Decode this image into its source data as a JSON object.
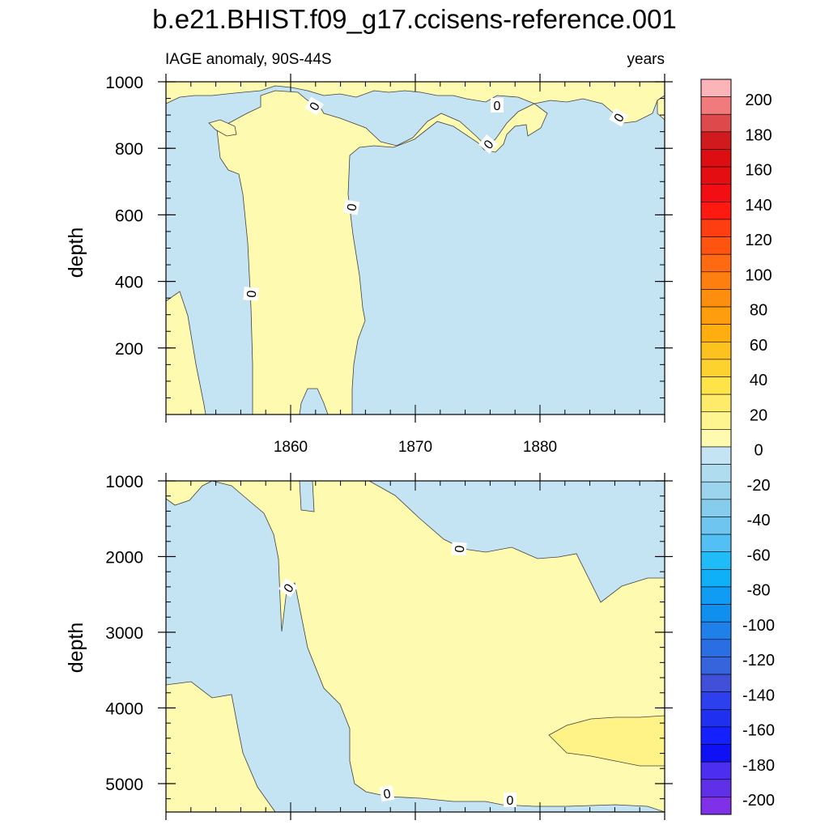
{
  "title": "b.e21.BHIST.f09_g17.ccisens-reference.001",
  "subtitle_left": "IAGE anomaly, 90S-44S",
  "subtitle_right": "years",
  "colors": {
    "neg_0_20": "#c4e4f4",
    "pos_0_20": "#fefbb0",
    "pos_20_40": "#fff387",
    "contour_line": "#404040"
  },
  "chart_data": [
    {
      "type": "heatmap",
      "panel": "upper",
      "ylabel": "depth",
      "ytick_labels": [
        "200",
        "400",
        "600",
        "800",
        "1000"
      ],
      "yticks": [
        200,
        400,
        600,
        800,
        1000
      ],
      "ylim": [
        1000,
        0
      ],
      "xlim": [
        1850,
        1890
      ],
      "xtick_labels": [
        "1860",
        "1870",
        "1880"
      ],
      "xticks": [
        1860,
        1870,
        1880
      ],
      "contour_labels": [
        "0",
        "0",
        "0",
        "0",
        "0",
        "0",
        "0"
      ]
    },
    {
      "type": "heatmap",
      "panel": "lower",
      "ylabel": "depth",
      "ytick_labels": [
        "1000",
        "2000",
        "3000",
        "4000",
        "5000"
      ],
      "yticks": [
        1000,
        2000,
        3000,
        4000,
        5000
      ],
      "ylim": [
        1000,
        5375
      ],
      "xlim": [
        1850,
        1890
      ],
      "contour_labels": [
        "0",
        "0",
        "0",
        "0"
      ]
    }
  ],
  "colorbar": {
    "labels": [
      "200",
      "180",
      "160",
      "140",
      "120",
      "100",
      "80",
      "60",
      "40",
      "20",
      "0",
      "-20",
      "-40",
      "-60",
      "-80",
      "-100",
      "-120",
      "-140",
      "-160",
      "-180",
      "-200"
    ],
    "colors": [
      "#fbb5b9",
      "#f07a7c",
      "#de4a4c",
      "#d01a1d",
      "#dc0e12",
      "#e40e12",
      "#f20e12",
      "#fe1a10",
      "#fe3e10",
      "#fe5410",
      "#fe6a10",
      "#fe7e10",
      "#fe8e0e",
      "#fe9e0e",
      "#feae0e",
      "#fec21e",
      "#fed22e",
      "#fee448",
      "#ffeb6a",
      "#fef490",
      "#fefbb0",
      "#c4e4f4",
      "#b0dcf0",
      "#9cd4ee",
      "#86cced",
      "#6ec6f0",
      "#52c0f4",
      "#20bcf8",
      "#10b0f8",
      "#109cf4",
      "#1090ee",
      "#2080ea",
      "#2a6ee4",
      "#3664dc",
      "#4050d8",
      "#2e40ee",
      "#2030f0",
      "#1420fe",
      "#0e10f6",
      "#4c2ef0",
      "#6030e8",
      "#8030e8"
    ]
  }
}
